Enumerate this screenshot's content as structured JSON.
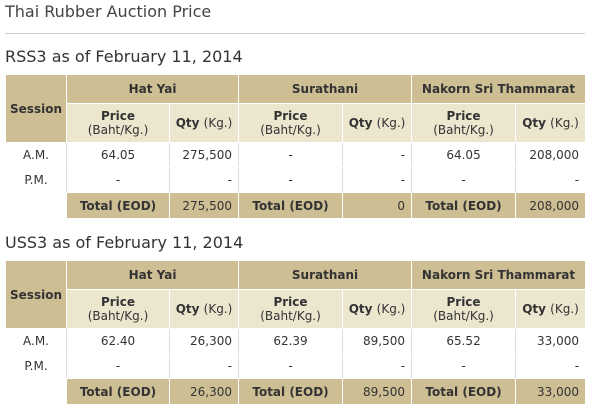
{
  "page_title": "Thai Rubber Auction Price",
  "headers": {
    "session": "Session",
    "price": "Price",
    "price_unit": "(Baht/Kg.)",
    "qty": "Qty",
    "qty_unit": "(Kg.)",
    "total_label": "Total (EOD)"
  },
  "colors": {
    "header_dark": "#cdbe93",
    "header_light": "#ece6cf"
  },
  "rss3": {
    "title": "RSS3 as of February 11, 2014",
    "locations": [
      "Hat Yai",
      "Surathani",
      "Nakorn Sri Thammarat"
    ],
    "rows": [
      {
        "session": "A.M.",
        "hatyai_price": "64.05",
        "hatyai_qty": "275,500",
        "surathani_price": "-",
        "surathani_qty": "-",
        "nakorn_price": "64.05",
        "nakorn_qty": "208,000"
      },
      {
        "session": "P.M.",
        "hatyai_price": "-",
        "hatyai_qty": "-",
        "surathani_price": "-",
        "surathani_qty": "-",
        "nakorn_price": "-",
        "nakorn_qty": "-"
      }
    ],
    "totals": {
      "hatyai": "275,500",
      "surathani": "0",
      "nakorn": "208,000"
    }
  },
  "uss3": {
    "title": "USS3 as of February 11, 2014",
    "locations": [
      "Hat Yai",
      "Surathani",
      "Nakorn Sri Thammarat"
    ],
    "rows": [
      {
        "session": "A.M.",
        "hatyai_price": "62.40",
        "hatyai_qty": "26,300",
        "surathani_price": "62.39",
        "surathani_qty": "89,500",
        "nakorn_price": "65.52",
        "nakorn_qty": "33,000"
      },
      {
        "session": "P.M.",
        "hatyai_price": "-",
        "hatyai_qty": "-",
        "surathani_price": "-",
        "surathani_qty": "-",
        "nakorn_price": "-",
        "nakorn_qty": "-"
      }
    ],
    "totals": {
      "hatyai": "26,300",
      "surathani": "89,500",
      "nakorn": "33,000"
    }
  }
}
